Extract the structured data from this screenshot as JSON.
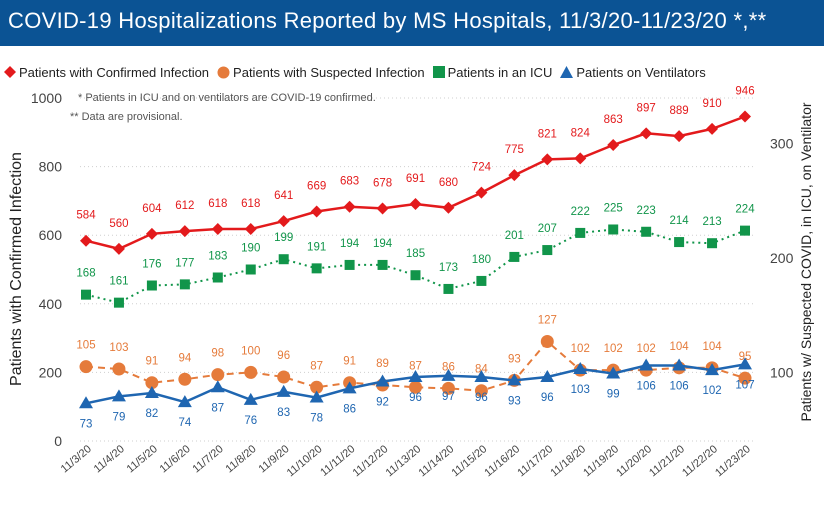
{
  "header": {
    "title": "COVID-19 Hospitalizations Reported by MS Hospitals, 11/3/20-11/23/20 *,**"
  },
  "colors": {
    "banner": "#0b5394",
    "confirmed": "#e31a1c",
    "suspected": "#e57b3b",
    "icu": "#11954a",
    "ventilators": "#1f66b1"
  },
  "chart_data": {
    "type": "line",
    "notes": [
      "* Patients in ICU and on ventilators are COVID-19 confirmed.",
      "** Data are provisional."
    ],
    "ylabel": "Patients with Confirmed Infection",
    "y2label": "Patients w/ Suspected COVID, in ICU, on Ventilator",
    "ylim": [
      0,
      1000
    ],
    "yticks": [
      0,
      200,
      400,
      600,
      800,
      1000
    ],
    "y2lim": [
      40,
      340
    ],
    "y2ticks": [
      100,
      200,
      300
    ],
    "legend_position": "top",
    "categories": [
      "11/3/20",
      "11/4/20",
      "11/5/20",
      "11/6/20",
      "11/7/20",
      "11/8/20",
      "11/9/20",
      "11/10/20",
      "11/11/20",
      "11/12/20",
      "11/13/20",
      "11/14/20",
      "11/15/20",
      "11/16/20",
      "11/17/20",
      "11/18/20",
      "11/19/20",
      "11/20/20",
      "11/21/20",
      "11/22/20",
      "11/23/20"
    ],
    "series": [
      {
        "name": "Patients with Confirmed Infection",
        "axis": "left",
        "color": "#e31a1c",
        "marker": "diamond",
        "line": "solid",
        "values": [
          584,
          560,
          604,
          612,
          618,
          618,
          641,
          669,
          683,
          678,
          691,
          680,
          724,
          775,
          821,
          824,
          863,
          897,
          889,
          910,
          946
        ]
      },
      {
        "name": "Patients with Suspected Infection",
        "axis": "right",
        "color": "#e57b3b",
        "marker": "circle",
        "line": "dashed",
        "values": [
          105,
          103,
          91,
          94,
          98,
          100,
          96,
          87,
          91,
          89,
          87,
          86,
          84,
          93,
          127,
          102,
          102,
          102,
          104,
          104,
          95
        ]
      },
      {
        "name": "Patients in an ICU",
        "axis": "right",
        "color": "#11954a",
        "marker": "square",
        "line": "dotted",
        "values": [
          168,
          161,
          176,
          177,
          183,
          190,
          199,
          191,
          194,
          194,
          185,
          173,
          180,
          201,
          207,
          222,
          225,
          223,
          214,
          213,
          224
        ]
      },
      {
        "name": "Patients on Ventilators",
        "axis": "right",
        "color": "#1f66b1",
        "marker": "triangle",
        "line": "solid",
        "values": [
          73,
          79,
          82,
          74,
          87,
          76,
          83,
          78,
          86,
          92,
          96,
          97,
          96,
          93,
          96,
          103,
          99,
          106,
          106,
          102,
          107
        ]
      }
    ]
  }
}
